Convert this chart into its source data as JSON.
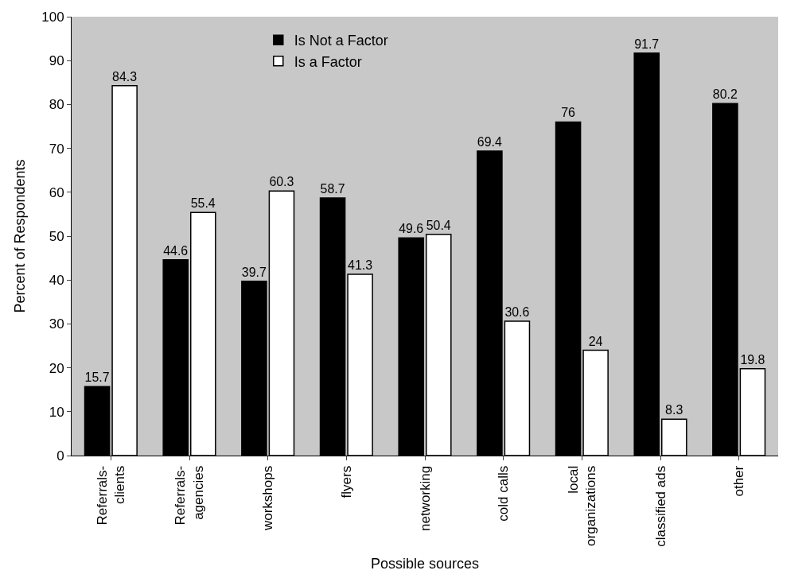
{
  "chart_data": {
    "type": "bar",
    "xlabel": "Possible sources",
    "ylabel": "Percent of Respondents",
    "categories": [
      "Referrals-\nclients",
      "Referrals-\nagencies",
      "workshops",
      "flyers",
      "networking",
      "cold calls",
      "local\norganizations",
      "classified ads",
      "other"
    ],
    "series": [
      {
        "name": "Is Not a Factor",
        "color": "#000000",
        "values": [
          15.7,
          44.6,
          39.7,
          58.7,
          49.6,
          69.4,
          76,
          91.7,
          80.2
        ]
      },
      {
        "name": "Is a Factor",
        "color": "#ffffff",
        "values": [
          84.3,
          55.4,
          60.3,
          41.3,
          50.4,
          30.6,
          24,
          8.3,
          19.8
        ]
      }
    ],
    "ylim": [
      0,
      100
    ],
    "yticks": [
      0,
      10,
      20,
      30,
      40,
      50,
      60,
      70,
      80,
      90,
      100
    ],
    "grid": false,
    "legend": "top",
    "data_labels": true
  }
}
